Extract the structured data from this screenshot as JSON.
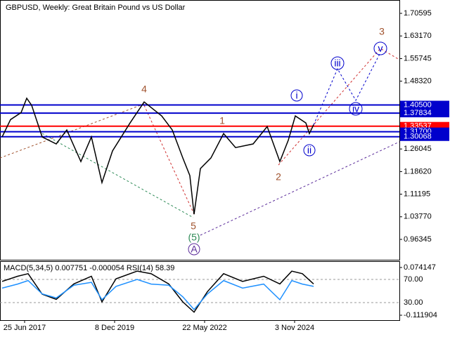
{
  "chart_data": [
    {
      "type": "line",
      "title": "GBPUSD, Weekly:  Great Britain Pound vs US Dollar",
      "x": [
        -32,
        -20,
        -5,
        3,
        10,
        25,
        45,
        60,
        80,
        95,
        110,
        125,
        150,
        170,
        195,
        210,
        225,
        235,
        241,
        250,
        265,
        283,
        300,
        325,
        345,
        363,
        375,
        385,
        400,
        405,
        411
      ],
      "series": [
        {
          "name": "GBPUSD",
          "color": "#000000",
          "values": [
            1.3,
            1.357,
            1.38,
            1.427,
            1.404,
            1.3,
            1.277,
            1.323,
            1.219,
            1.3,
            1.15,
            1.254,
            1.346,
            1.415,
            1.369,
            1.323,
            1.231,
            1.173,
            1.046,
            1.196,
            1.231,
            1.311,
            1.265,
            1.277,
            1.334,
            1.219,
            1.289,
            1.369,
            1.346,
            1.311,
            1.34
          ]
        }
      ],
      "xlim": [
        -35,
        533
      ],
      "xticks": [
        {
          "value": 0,
          "label": "25 Jun 2017"
        },
        {
          "value": 128,
          "label": "8 Dec 2019"
        },
        {
          "value": 256,
          "label": "22 May 2022"
        },
        {
          "value": 384,
          "label": "3 Nov 2024"
        }
      ],
      "ylim": [
        0.8965,
        1.7498
      ],
      "yticks": [
        1.70595,
        {
          "value": 1.6317,
          "label": "1.63170"
        },
        1.55745,
        {
          "value": 1.4832,
          "label": "1.48320"
        },
        1.26045,
        {
          "value": 1.1862,
          "label": "1.18620"
        },
        1.11195,
        {
          "value": 1.0377,
          "label": "1.03770"
        },
        0.96345
      ],
      "levels": [
        {
          "value": 1.405,
          "label": "1.40500",
          "color": "#0000cc"
        },
        {
          "value": 1.37834,
          "color": "#0000cc"
        },
        {
          "value": 1.33537,
          "color": "#ff0000"
        },
        {
          "value": 1.317,
          "label": "1.31700",
          "color": "#0000cc"
        },
        {
          "value": 1.30068,
          "color": "#0000cc"
        }
      ],
      "annotations": [
        "3",
        "4",
        "1",
        "2",
        "5",
        "(5)",
        "A",
        "i",
        "ii",
        "iii",
        "iv",
        "v"
      ]
    },
    {
      "type": "line",
      "title": "MACD(5,34,5) 0.007751 -0.000054 RSI(14) 58.39",
      "x": [
        -32,
        -10,
        5,
        25,
        45,
        70,
        95,
        110,
        130,
        160,
        180,
        205,
        225,
        241,
        260,
        283,
        310,
        340,
        363,
        380,
        395,
        411
      ],
      "series": [
        {
          "name": "MACD",
          "color": "#000000",
          "values": [
            0.02,
            0.04,
            0.05,
            -0.03,
            -0.05,
            0.01,
            0.04,
            -0.06,
            0.03,
            0.06,
            0.05,
            0.01,
            -0.06,
            -0.1,
            -0.02,
            0.05,
            0.02,
            0.04,
            0.01,
            0.06,
            0.05,
            0.01
          ]
        },
        {
          "name": "RSI",
          "color": "#1e90ff",
          "axis": "y1",
          "values": [
            55,
            62,
            68,
            45,
            38,
            60,
            65,
            35,
            58,
            70,
            62,
            60,
            40,
            18,
            45,
            68,
            55,
            62,
            35,
            68,
            62,
            58
          ]
        }
      ],
      "ylim": [
        -0.3,
        101.5
      ],
      "yticks": [
        {
          "value": 70,
          "label": "70.00"
        },
        {
          "value": 30,
          "label": "30.00"
        }
      ],
      "y2lim": [
        -0.1311,
        0.0988
      ],
      "y2ticks": [
        0.074147,
        -0.111904
      ]
    }
  ]
}
